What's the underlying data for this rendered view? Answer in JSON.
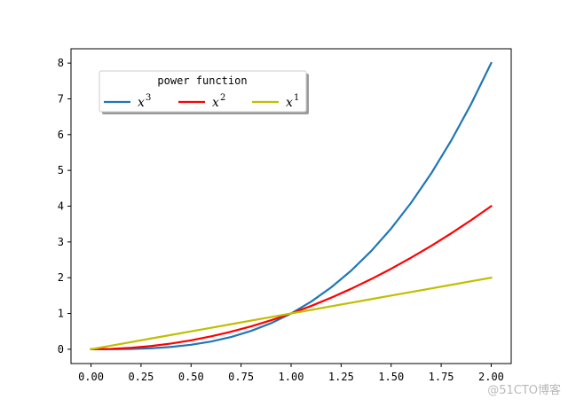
{
  "chart_data": {
    "type": "line",
    "title": "",
    "xlabel": "",
    "ylabel": "",
    "xlim": [
      -0.1,
      2.1
    ],
    "ylim": [
      -0.4,
      8.4
    ],
    "xticks": [
      "0.00",
      "0.25",
      "0.50",
      "0.75",
      "1.00",
      "1.25",
      "1.50",
      "1.75",
      "2.00"
    ],
    "yticks": [
      "0",
      "1",
      "2",
      "3",
      "4",
      "5",
      "6",
      "7",
      "8"
    ],
    "grid": false,
    "legend": {
      "title": "power function",
      "placement": "upper-left",
      "columns": 3,
      "shadow": true
    },
    "x": [
      0.0,
      0.1,
      0.2,
      0.3,
      0.4,
      0.5,
      0.6,
      0.7,
      0.8,
      0.9,
      1.0,
      1.1,
      1.2,
      1.3,
      1.4,
      1.5,
      1.6,
      1.7,
      1.8,
      1.9,
      2.0
    ],
    "series": [
      {
        "name": "x",
        "exponent": "3",
        "color": "#1f77b4",
        "values": [
          0.0,
          0.001,
          0.008,
          0.027,
          0.064,
          0.125,
          0.216,
          0.343,
          0.512,
          0.729,
          1.0,
          1.331,
          1.728,
          2.197,
          2.744,
          3.375,
          4.096,
          4.913,
          5.832,
          6.859,
          8.0
        ]
      },
      {
        "name": "x",
        "exponent": "2",
        "color": "#ff0000",
        "values": [
          0.0,
          0.01,
          0.04,
          0.09,
          0.16,
          0.25,
          0.36,
          0.49,
          0.64,
          0.81,
          1.0,
          1.21,
          1.44,
          1.69,
          1.96,
          2.25,
          2.56,
          2.89,
          3.24,
          3.61,
          4.0
        ]
      },
      {
        "name": "x",
        "exponent": "1",
        "color": "#bfbf00",
        "values": [
          0.0,
          0.1,
          0.2,
          0.3,
          0.4,
          0.5,
          0.6,
          0.7,
          0.8,
          0.9,
          1.0,
          1.1,
          1.2,
          1.3,
          1.4,
          1.5,
          1.6,
          1.7,
          1.8,
          1.9,
          2.0
        ]
      }
    ]
  },
  "watermark": "@51CTO博客"
}
